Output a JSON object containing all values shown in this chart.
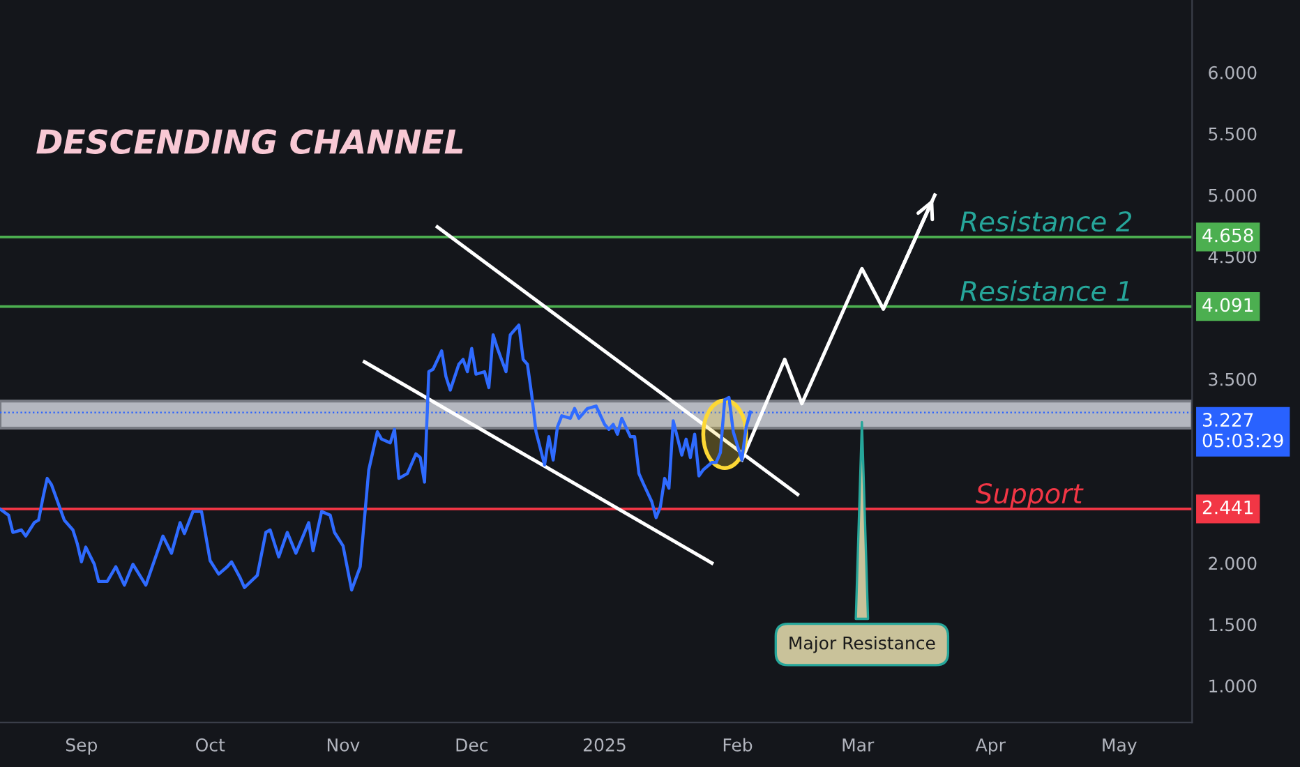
{
  "chart_data": {
    "type": "line",
    "title": "DESCENDING CHANNEL",
    "x": [
      "2024-08-13",
      "2024-08-15",
      "2024-08-16",
      "2024-08-18",
      "2024-08-19",
      "2024-08-21",
      "2024-08-22",
      "2024-08-23",
      "2024-08-24",
      "2024-08-25",
      "2024-08-28",
      "2024-08-30",
      "2024-08-31",
      "2024-09-01",
      "2024-09-02",
      "2024-09-04",
      "2024-09-05",
      "2024-09-07",
      "2024-09-09",
      "2024-09-11",
      "2024-09-13",
      "2024-09-16",
      "2024-09-20",
      "2024-09-22",
      "2024-09-24",
      "2024-09-25",
      "2024-09-27",
      "2024-09-29",
      "2024-10-01",
      "2024-10-03",
      "2024-10-05",
      "2024-10-06",
      "2024-10-08",
      "2024-10-09",
      "2024-10-12",
      "2024-10-14",
      "2024-10-15",
      "2024-10-17",
      "2024-10-19",
      "2024-10-21",
      "2024-10-24",
      "2024-10-25",
      "2024-10-27",
      "2024-10-29",
      "2024-10-30",
      "2024-11-01",
      "2024-11-03",
      "2024-11-05",
      "2024-11-07",
      "2024-11-09",
      "2024-11-10",
      "2024-11-12",
      "2024-11-13",
      "2024-11-14",
      "2024-11-16",
      "2024-11-18",
      "2024-11-19",
      "2024-11-20",
      "2024-11-21",
      "2024-11-22",
      "2024-11-24",
      "2024-11-25",
      "2024-11-26",
      "2024-11-28",
      "2024-11-29",
      "2024-11-30",
      "2024-12-01",
      "2024-12-02",
      "2024-12-04",
      "2024-12-05",
      "2024-12-06",
      "2024-12-07",
      "2024-12-09",
      "2024-12-10",
      "2024-12-11",
      "2024-12-12",
      "2024-12-13",
      "2024-12-14",
      "2024-12-15",
      "2024-12-16",
      "2024-12-18",
      "2024-12-19",
      "2024-12-20",
      "2024-12-21",
      "2024-12-22",
      "2024-12-24",
      "2024-12-25",
      "2024-12-26",
      "2024-12-28",
      "2024-12-30",
      "2025-01-01",
      "2025-01-02",
      "2025-01-03",
      "2025-01-04",
      "2025-01-05",
      "2025-01-07",
      "2025-01-08",
      "2025-01-09",
      "2025-01-10",
      "2025-01-12",
      "2025-01-13",
      "2025-01-14",
      "2025-01-15",
      "2025-01-16",
      "2025-01-17",
      "2025-01-19",
      "2025-01-20",
      "2025-01-21",
      "2025-01-22",
      "2025-01-23",
      "2025-01-24",
      "2025-01-26",
      "2025-01-27",
      "2025-01-28",
      "2025-01-29",
      "2025-01-30",
      "2025-01-31",
      "2025-02-02",
      "2025-02-03",
      "2025-02-04"
    ],
    "series": [
      {
        "color": "#2f6bff",
        "values": [
          2.44,
          2.39,
          2.25,
          2.27,
          2.22,
          2.33,
          2.35,
          2.53,
          2.69,
          2.64,
          2.35,
          2.27,
          2.16,
          2.01,
          2.13,
          1.99,
          1.85,
          1.85,
          1.97,
          1.82,
          1.99,
          1.82,
          2.22,
          2.08,
          2.33,
          2.24,
          2.42,
          2.42,
          2.02,
          1.91,
          1.97,
          2.01,
          1.88,
          1.8,
          1.9,
          2.25,
          2.27,
          2.05,
          2.25,
          2.08,
          2.33,
          2.1,
          2.42,
          2.39,
          2.25,
          2.14,
          1.78,
          1.97,
          2.76,
          3.07,
          3.01,
          2.98,
          3.09,
          2.69,
          2.73,
          2.89,
          2.86,
          2.66,
          3.56,
          3.58,
          3.73,
          3.52,
          3.41,
          3.62,
          3.66,
          3.56,
          3.75,
          3.54,
          3.56,
          3.43,
          3.86,
          3.75,
          3.56,
          3.86,
          3.9,
          3.94,
          3.66,
          3.62,
          3.37,
          3.07,
          2.8,
          3.03,
          2.84,
          3.11,
          3.2,
          3.18,
          3.26,
          3.18,
          3.26,
          3.28,
          3.13,
          3.09,
          3.13,
          3.05,
          3.18,
          3.03,
          3.03,
          2.73,
          2.65,
          2.5,
          2.37,
          2.46,
          2.69,
          2.61,
          3.16,
          2.88,
          3.01,
          2.86,
          3.05,
          2.71,
          2.76,
          2.82,
          2.82,
          2.9,
          3.33,
          3.35,
          3.07,
          2.84,
          3.11,
          3.23
        ]
      },
      {
        "type": "line",
        "color": "#ffffff",
        "x": [
          "2024-11-23",
          "2025-02-15"
        ],
        "values": [
          4.74,
          2.56
        ]
      },
      {
        "type": "line",
        "color": "#ffffff",
        "x": [
          "2024-11-06",
          "2025-01-26"
        ],
        "values": [
          3.64,
          2.0
        ]
      },
      {
        "type": "line",
        "color": "#ffffff",
        "x": [
          "2025-02-02",
          "2025-02-12",
          "2025-02-16",
          "2025-03-02",
          "2025-03-07",
          "2025-03-19"
        ],
        "values": [
          2.84,
          3.66,
          3.3,
          4.4,
          4.07,
          5.0
        ]
      }
    ],
    "xlim": [
      "2024-08-13",
      "2025-05-18"
    ],
    "xticks": [
      {
        "value": "2024-09-01",
        "label": "Sep"
      },
      {
        "value": "2024-10-01",
        "label": "Oct"
      },
      {
        "value": "2024-11-01",
        "label": "Nov"
      },
      {
        "value": "2024-12-01",
        "label": "Dec"
      },
      {
        "value": "2025-01-01",
        "label": "2025"
      },
      {
        "value": "2025-02-01",
        "label": "Feb"
      },
      {
        "value": "2025-03-01",
        "label": "Mar"
      },
      {
        "value": "2025-04-01",
        "label": "Apr"
      },
      {
        "value": "2025-05-01",
        "label": "May"
      }
    ],
    "ylim": [
      0.7,
      6.59
    ],
    "yticks": [
      {
        "value": 1,
        "label": "1.000"
      },
      {
        "value": 1.5,
        "label": "1.500"
      },
      {
        "value": 2,
        "label": "2.000"
      },
      {
        "value": 3.5,
        "label": "3.500"
      },
      {
        "value": 4.5,
        "label": "4.500"
      },
      {
        "value": 5,
        "label": "5.000"
      },
      {
        "value": 5.5,
        "label": "5.500"
      },
      {
        "value": 6,
        "label": "6.000"
      }
    ],
    "ref_lines": [
      {
        "axis": "y",
        "value": 4.658,
        "label": "4.658",
        "color": "#4caf50",
        "line_style": "solid"
      },
      {
        "axis": "y",
        "value": 4.091,
        "label": "4.091",
        "color": "#4caf50",
        "line_style": "solid"
      },
      {
        "axis": "y",
        "value": 2.441,
        "label": "2.441",
        "color": "#f23645",
        "line_style": "solid"
      },
      {
        "axis": "y",
        "value": 3.227,
        "label": "3.227",
        "color": "#2962ff",
        "line_style": "dotted"
      }
    ],
    "bands": [
      {
        "axis": "y",
        "from": 3.1,
        "to": 3.32,
        "color": "#d1d4dc"
      }
    ],
    "annotations": [
      {
        "text": "Major Resistance",
        "x": "2025-03-02",
        "y": 3.18
      },
      {
        "text": "Resistance 2",
        "x": "2025-04-14",
        "y": 4.658
      },
      {
        "text": "Resistance 1",
        "x": "2025-04-14",
        "y": 4.091
      },
      {
        "text": "Support",
        "x": "2025-04-10",
        "y": 2.441
      },
      "05:03:29"
    ],
    "grid": false,
    "legend": false,
    "marker": "none",
    "line_style": "solid"
  }
}
